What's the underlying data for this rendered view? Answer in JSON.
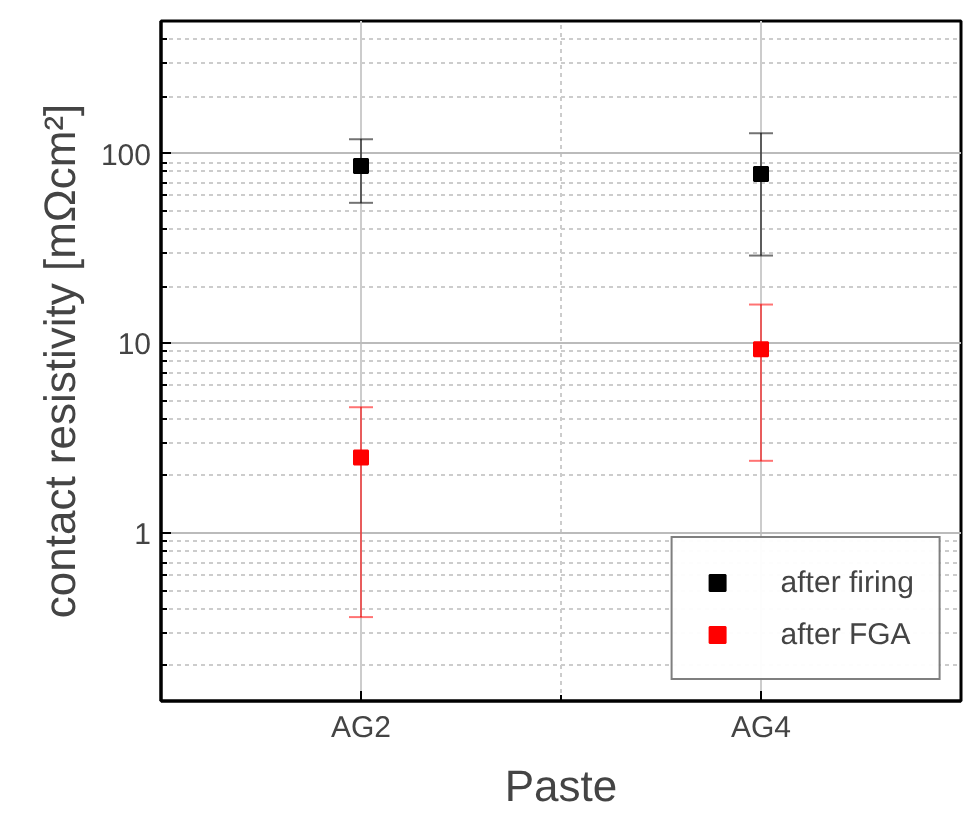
{
  "chart_data": {
    "type": "scatter",
    "xlabel": "Paste",
    "ylabel": "contact resistivity [mΩcm²]",
    "categories": [
      "AG2",
      "AG4"
    ],
    "series": [
      {
        "name": "after firing",
        "color": "#000000",
        "values": [
          86,
          78
        ],
        "errors": [
          [
            55,
            119
          ],
          [
            29,
            128
          ]
        ]
      },
      {
        "name": "after FGA",
        "color": "#ff0000",
        "values": [
          2.5,
          9.3
        ],
        "errors": [
          [
            0.36,
            4.6
          ],
          [
            2.4,
            16
          ]
        ]
      }
    ],
    "log": "y",
    "ylim": [
      0.13,
      500
    ],
    "yticks": [
      1,
      10,
      100
    ],
    "grid": true,
    "legend": "bottom right",
    "marker": "square"
  }
}
